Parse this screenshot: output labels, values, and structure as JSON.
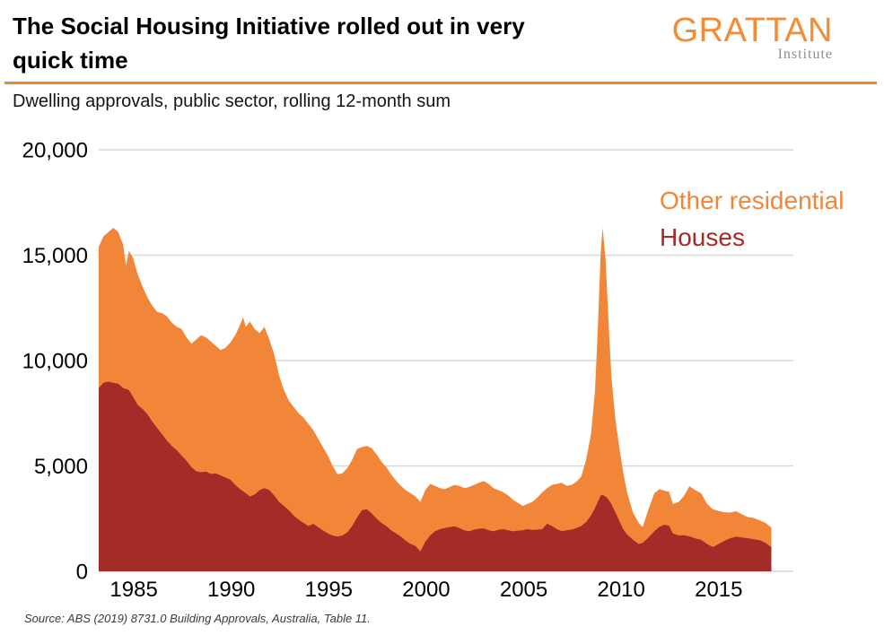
{
  "header": {
    "title_line1": "The Social Housing Initiative rolled out in very",
    "title_line2": "quick time",
    "logo_text": "GRATTAN",
    "logo_subtext": "Institute"
  },
  "subtitle": "Dwelling approvals, public sector, rolling 12-month sum",
  "source": "Source: ABS (2019) 8731.0 Building Approvals, Australia, Table 11.",
  "colors": {
    "area_orange": "#F28638",
    "area_dark_red": "#A32C28",
    "gridline": "#D9D9D9",
    "divider": "#EE8A2E",
    "logo_orange": "#F68B33",
    "logo_gray": "#8A8D96",
    "axis_text": "#000000"
  },
  "chart_data": {
    "type": "area",
    "stacked": true,
    "note": "Stacked rolling 12-month sums; total approvals = Houses + Other residential",
    "title": "The Social Housing Initiative rolled out in very quick time",
    "subtitle": "Dwelling approvals, public sector, rolling 12-month sum",
    "grid": "horizontal",
    "legend_position": "top-right",
    "xlim": [
      1983.2,
      2018.83
    ],
    "ylim": [
      0,
      20000
    ],
    "y_ticks": [
      {
        "value": 0,
        "label": "0"
      },
      {
        "value": 5000,
        "label": "5,000"
      },
      {
        "value": 10000,
        "label": "10,000"
      },
      {
        "value": 15000,
        "label": "15,000"
      },
      {
        "value": 20000,
        "label": "20,000"
      }
    ],
    "x_ticks": [
      {
        "value": 1985,
        "label": "1985"
      },
      {
        "value": 1990,
        "label": "1990"
      },
      {
        "value": 1995,
        "label": "1995"
      },
      {
        "value": 2000,
        "label": "2000"
      },
      {
        "value": 2005,
        "label": "2005"
      },
      {
        "value": 2010,
        "label": "2010"
      },
      {
        "value": 2015,
        "label": "2015"
      }
    ],
    "x": [
      1983.2,
      1983.45,
      1983.7,
      1983.95,
      1984.2,
      1984.45,
      1984.6,
      1984.75,
      1984.95,
      1985.2,
      1985.45,
      1985.7,
      1985.95,
      1986.2,
      1986.45,
      1986.7,
      1986.95,
      1987.2,
      1987.45,
      1987.7,
      1987.95,
      1988.2,
      1988.45,
      1988.7,
      1988.95,
      1989.2,
      1989.45,
      1989.7,
      1989.95,
      1990.2,
      1990.45,
      1990.6,
      1990.75,
      1990.95,
      1991.2,
      1991.45,
      1991.7,
      1991.95,
      1992.2,
      1992.45,
      1992.7,
      1992.95,
      1993.2,
      1993.45,
      1993.7,
      1993.95,
      1994.2,
      1994.45,
      1994.7,
      1994.95,
      1995.2,
      1995.45,
      1995.7,
      1995.95,
      1996.2,
      1996.45,
      1996.7,
      1996.95,
      1997.2,
      1997.45,
      1997.7,
      1997.95,
      1998.2,
      1998.45,
      1998.7,
      1998.95,
      1999.2,
      1999.45,
      1999.7,
      1999.95,
      2000.2,
      2000.45,
      2000.7,
      2000.95,
      2001.2,
      2001.45,
      2001.7,
      2001.95,
      2002.2,
      2002.45,
      2002.7,
      2002.95,
      2003.2,
      2003.45,
      2003.7,
      2003.95,
      2004.2,
      2004.45,
      2004.7,
      2004.95,
      2005.2,
      2005.45,
      2005.7,
      2005.95,
      2006.2,
      2006.45,
      2006.7,
      2006.95,
      2007.2,
      2007.45,
      2007.7,
      2007.95,
      2008.2,
      2008.45,
      2008.65,
      2008.8,
      2008.95,
      2009.05,
      2009.2,
      2009.35,
      2009.5,
      2009.7,
      2009.9,
      2010.1,
      2010.3,
      2010.6,
      2010.9,
      2011.1,
      2011.4,
      2011.7,
      2011.95,
      2012.2,
      2012.45,
      2012.65,
      2012.95,
      2013.2,
      2013.5,
      2013.8,
      2014.1,
      2014.4,
      2014.7,
      2015.0,
      2015.3,
      2015.6,
      2015.9,
      2016.2,
      2016.5,
      2016.8,
      2017.1,
      2017.4,
      2017.7
    ],
    "series": [
      {
        "name": "Houses",
        "color": "#A32C28",
        "values": [
          8700,
          8950,
          9000,
          8950,
          8900,
          8700,
          8650,
          8600,
          8300,
          7900,
          7700,
          7450,
          7100,
          6800,
          6500,
          6200,
          5950,
          5750,
          5500,
          5250,
          4950,
          4750,
          4700,
          4730,
          4620,
          4650,
          4550,
          4450,
          4350,
          4100,
          3900,
          3800,
          3700,
          3550,
          3650,
          3850,
          3950,
          3850,
          3600,
          3300,
          3100,
          2900,
          2650,
          2450,
          2300,
          2150,
          2250,
          2100,
          1950,
          1800,
          1700,
          1650,
          1700,
          1850,
          2150,
          2550,
          2900,
          2950,
          2750,
          2500,
          2300,
          2150,
          1950,
          1800,
          1650,
          1450,
          1300,
          1200,
          950,
          1400,
          1700,
          1900,
          2000,
          2050,
          2100,
          2130,
          2050,
          1950,
          1900,
          1980,
          2020,
          2040,
          1950,
          1900,
          1970,
          2000,
          1950,
          1900,
          1930,
          1950,
          2000,
          1960,
          1980,
          2000,
          2260,
          2150,
          2000,
          1910,
          1950,
          1980,
          2050,
          2150,
          2340,
          2650,
          3000,
          3300,
          3600,
          3620,
          3550,
          3400,
          3190,
          2800,
          2400,
          2000,
          1750,
          1500,
          1300,
          1350,
          1600,
          1900,
          2100,
          2210,
          2170,
          1800,
          1700,
          1720,
          1660,
          1560,
          1500,
          1300,
          1150,
          1300,
          1450,
          1570,
          1650,
          1600,
          1570,
          1520,
          1480,
          1350,
          1150
        ]
      },
      {
        "name": "Other residential",
        "color": "#F28638",
        "values": [
          6700,
          6950,
          7100,
          7350,
          7200,
          6800,
          5850,
          6600,
          6600,
          6200,
          5800,
          5550,
          5500,
          5500,
          5750,
          5900,
          5850,
          5850,
          6000,
          5850,
          5850,
          6250,
          6500,
          6370,
          6280,
          6050,
          5950,
          6150,
          6500,
          7100,
          7800,
          8250,
          7900,
          8300,
          7850,
          7450,
          7650,
          7150,
          6700,
          6000,
          5500,
          5200,
          5150,
          5050,
          5000,
          4850,
          4450,
          4200,
          3950,
          3700,
          3300,
          2950,
          2950,
          3050,
          3150,
          3250,
          3000,
          3000,
          3100,
          3050,
          2900,
          2800,
          2650,
          2500,
          2400,
          2400,
          2400,
          2350,
          2350,
          2450,
          2450,
          2150,
          1950,
          1850,
          1900,
          1970,
          2000,
          2000,
          2100,
          2120,
          2180,
          2240,
          2200,
          2050,
          1880,
          1750,
          1650,
          1500,
          1320,
          1150,
          1200,
          1340,
          1520,
          1750,
          1690,
          1950,
          2150,
          2290,
          2100,
          2120,
          2200,
          2350,
          2960,
          3850,
          5500,
          8200,
          11600,
          12680,
          11250,
          8400,
          6010,
          4400,
          3500,
          2700,
          2000,
          1300,
          1000,
          750,
          1350,
          1800,
          1800,
          1620,
          1610,
          1400,
          1600,
          1830,
          2380,
          2290,
          2200,
          1900,
          1790,
          1570,
          1350,
          1220,
          1200,
          1100,
          1000,
          1010,
          940,
          950,
          930
        ]
      }
    ]
  }
}
